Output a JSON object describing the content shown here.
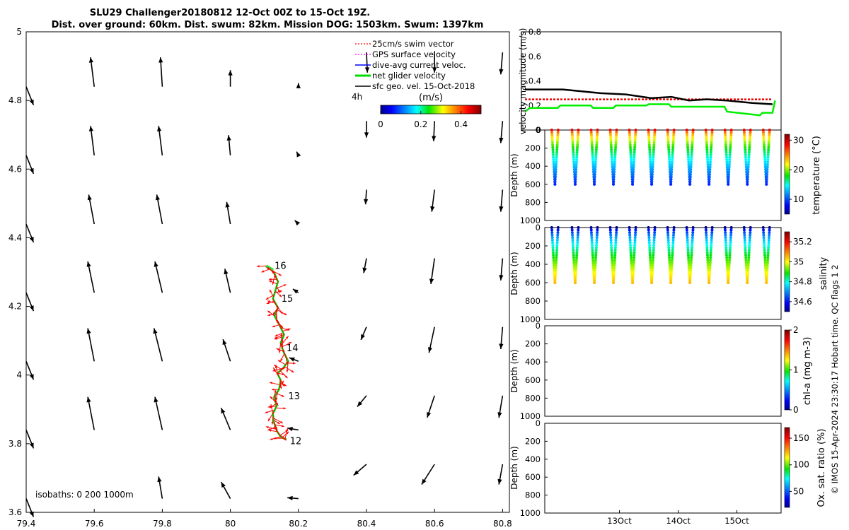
{
  "title": {
    "line1": "SLU29 Challenger20180812 12-Oct 00Z to 15-Oct 19Z.",
    "line2": "Dist. over ground: 60km. Dist. swum: 82km. Mission DOG: 1503km. Swum: 1397km"
  },
  "chart_data": [
    {
      "name": "map",
      "type": "scatter",
      "xticks": [
        "79.4",
        "79.6",
        "79.8",
        "80",
        "80.2",
        "80.4",
        "80.6",
        "80.8"
      ],
      "yticks": [
        "3.6",
        "3.8",
        "4",
        "4.2",
        "4.4",
        "4.6",
        "4.8",
        "5"
      ],
      "xlim": [
        79.4,
        80.82
      ],
      "ylim": [
        3.6,
        5.0
      ],
      "legend": [
        {
          "label": "25cm/s swim vector",
          "color": "#ff0000"
        },
        {
          "label": "GPS surface velocity",
          "color": "#ff00ff"
        },
        {
          "label": "dive-avg current veloc.",
          "color": "#0000ff"
        },
        {
          "label": "net glider velocity",
          "color": "#00dd00"
        },
        {
          "label": "sfc geo. vel. 15-Oct-2018",
          "color": "#000000"
        }
      ],
      "colorbar": {
        "label": "(m/s)",
        "ticks": [
          "0",
          "0.2",
          "0.4"
        ],
        "range": [
          0,
          0.5
        ]
      },
      "scale_label": "4h",
      "isobaths_label": "isobaths: 0    200   1000m",
      "track": {
        "points": [
          [
            80.105,
            4.318
          ],
          [
            80.128,
            4.3
          ],
          [
            80.14,
            4.272
          ],
          [
            80.132,
            4.245
          ],
          [
            80.125,
            4.222
          ],
          [
            80.14,
            4.196
          ],
          [
            80.13,
            4.172
          ],
          [
            80.148,
            4.138
          ],
          [
            80.158,
            4.118
          ],
          [
            80.148,
            4.094
          ],
          [
            80.155,
            4.07
          ],
          [
            80.17,
            4.04
          ],
          [
            80.155,
            4.02
          ],
          [
            80.138,
            4.005
          ],
          [
            80.148,
            3.985
          ],
          [
            80.143,
            3.958
          ],
          [
            80.128,
            3.935
          ],
          [
            80.136,
            3.91
          ],
          [
            80.125,
            3.887
          ],
          [
            80.128,
            3.862
          ],
          [
            80.138,
            3.835
          ],
          [
            80.148,
            3.82
          ],
          [
            80.165,
            3.812
          ]
        ],
        "day_labels": [
          {
            "text": "16",
            "lon": 80.13,
            "lat": 4.318
          },
          {
            "text": "15",
            "lon": 80.15,
            "lat": 4.222
          },
          {
            "text": "14",
            "lon": 80.165,
            "lat": 4.078
          },
          {
            "text": "13",
            "lon": 80.17,
            "lat": 3.938
          },
          {
            "text": "12",
            "lon": 80.175,
            "lat": 3.807
          }
        ]
      },
      "vectors": [
        {
          "lon": 79.4,
          "lat": 4.84,
          "u": 0.08,
          "v": -0.2
        },
        {
          "lon": 79.4,
          "lat": 4.64,
          "u": 0.08,
          "v": -0.2
        },
        {
          "lon": 79.4,
          "lat": 4.44,
          "u": 0.08,
          "v": -0.2
        },
        {
          "lon": 79.4,
          "lat": 4.24,
          "u": 0.08,
          "v": -0.2
        },
        {
          "lon": 79.4,
          "lat": 4.04,
          "u": 0.08,
          "v": -0.2
        },
        {
          "lon": 79.4,
          "lat": 3.84,
          "u": 0.08,
          "v": -0.2
        },
        {
          "lon": 79.4,
          "lat": 3.64,
          "u": 0.08,
          "v": -0.2
        },
        {
          "lon": 79.6,
          "lat": 4.84,
          "u": -0.04,
          "v": 0.32
        },
        {
          "lon": 79.6,
          "lat": 4.64,
          "u": -0.04,
          "v": 0.32
        },
        {
          "lon": 79.6,
          "lat": 4.44,
          "u": -0.06,
          "v": 0.32
        },
        {
          "lon": 79.6,
          "lat": 4.24,
          "u": -0.07,
          "v": 0.34
        },
        {
          "lon": 79.6,
          "lat": 4.04,
          "u": -0.07,
          "v": 0.36
        },
        {
          "lon": 79.6,
          "lat": 3.84,
          "u": -0.07,
          "v": 0.36
        },
        {
          "lon": 79.8,
          "lat": 4.84,
          "u": -0.02,
          "v": 0.32
        },
        {
          "lon": 79.8,
          "lat": 4.64,
          "u": -0.04,
          "v": 0.32
        },
        {
          "lon": 79.8,
          "lat": 4.44,
          "u": -0.06,
          "v": 0.32
        },
        {
          "lon": 79.8,
          "lat": 4.24,
          "u": -0.08,
          "v": 0.34
        },
        {
          "lon": 79.8,
          "lat": 4.04,
          "u": -0.09,
          "v": 0.36
        },
        {
          "lon": 79.8,
          "lat": 3.84,
          "u": -0.08,
          "v": 0.36
        },
        {
          "lon": 79.8,
          "lat": 3.64,
          "u": -0.04,
          "v": 0.24
        },
        {
          "lon": 80.0,
          "lat": 4.84,
          "u": 0.0,
          "v": 0.18
        },
        {
          "lon": 80.0,
          "lat": 4.64,
          "u": -0.02,
          "v": 0.22
        },
        {
          "lon": 80.0,
          "lat": 4.44,
          "u": -0.04,
          "v": 0.24
        },
        {
          "lon": 80.0,
          "lat": 4.24,
          "u": -0.06,
          "v": 0.26
        },
        {
          "lon": 80.0,
          "lat": 4.04,
          "u": -0.08,
          "v": 0.24
        },
        {
          "lon": 80.0,
          "lat": 3.84,
          "u": -0.1,
          "v": 0.24
        },
        {
          "lon": 80.0,
          "lat": 3.64,
          "u": -0.1,
          "v": 0.18
        },
        {
          "lon": 80.2,
          "lat": 4.84,
          "u": 0.0,
          "v": 0.04
        },
        {
          "lon": 80.2,
          "lat": 4.64,
          "u": -0.02,
          "v": 0.04
        },
        {
          "lon": 80.2,
          "lat": 4.44,
          "u": -0.04,
          "v": 0.04
        },
        {
          "lon": 80.2,
          "lat": 4.24,
          "u": -0.06,
          "v": 0.04
        },
        {
          "lon": 80.2,
          "lat": 4.04,
          "u": -0.1,
          "v": 0.04
        },
        {
          "lon": 80.2,
          "lat": 3.84,
          "u": -0.12,
          "v": 0.02
        },
        {
          "lon": 80.2,
          "lat": 3.64,
          "u": -0.12,
          "v": 0.01
        },
        {
          "lon": 80.4,
          "lat": 4.94,
          "u": 0.01,
          "v": -0.22
        },
        {
          "lon": 80.4,
          "lat": 4.74,
          "u": 0.0,
          "v": -0.18
        },
        {
          "lon": 80.4,
          "lat": 4.54,
          "u": -0.01,
          "v": -0.16
        },
        {
          "lon": 80.4,
          "lat": 4.34,
          "u": -0.03,
          "v": -0.16
        },
        {
          "lon": 80.4,
          "lat": 4.14,
          "u": -0.06,
          "v": -0.14
        },
        {
          "lon": 80.4,
          "lat": 3.94,
          "u": -0.1,
          "v": -0.12
        },
        {
          "lon": 80.4,
          "lat": 3.74,
          "u": -0.14,
          "v": -0.12
        },
        {
          "lon": 80.6,
          "lat": 4.94,
          "u": 0.0,
          "v": -0.22
        },
        {
          "lon": 80.6,
          "lat": 4.74,
          "u": -0.01,
          "v": -0.22
        },
        {
          "lon": 80.6,
          "lat": 4.54,
          "u": -0.03,
          "v": -0.24
        },
        {
          "lon": 80.6,
          "lat": 4.34,
          "u": -0.04,
          "v": -0.28
        },
        {
          "lon": 80.6,
          "lat": 4.14,
          "u": -0.06,
          "v": -0.28
        },
        {
          "lon": 80.6,
          "lat": 3.94,
          "u": -0.08,
          "v": -0.24
        },
        {
          "lon": 80.6,
          "lat": 3.74,
          "u": -0.14,
          "v": -0.22
        },
        {
          "lon": 80.8,
          "lat": 4.94,
          "u": -0.02,
          "v": -0.24
        },
        {
          "lon": 80.8,
          "lat": 4.74,
          "u": -0.02,
          "v": -0.24
        },
        {
          "lon": 80.8,
          "lat": 4.54,
          "u": -0.02,
          "v": -0.24
        },
        {
          "lon": 80.8,
          "lat": 4.34,
          "u": -0.02,
          "v": -0.24
        },
        {
          "lon": 80.8,
          "lat": 4.14,
          "u": -0.02,
          "v": -0.24
        },
        {
          "lon": 80.8,
          "lat": 3.94,
          "u": -0.04,
          "v": -0.24
        },
        {
          "lon": 80.8,
          "lat": 3.74,
          "u": -0.04,
          "v": -0.22
        }
      ]
    },
    {
      "name": "velocity",
      "type": "line",
      "ylabel": "velocity magnitude (m/s)",
      "yticks": [
        "0",
        "0.2",
        "0.4",
        "0.6",
        "0.8"
      ],
      "ylim": [
        0,
        0.8
      ],
      "xlim": [
        0,
        1
      ],
      "series": [
        {
          "name": "swim",
          "color": "#ee0000",
          "dashed": true,
          "x": [
            0,
            0.98
          ],
          "y": [
            0.25,
            0.25
          ]
        },
        {
          "name": "net glider velocity",
          "color": "#00ee00",
          "x": [
            0,
            0.02,
            0.07,
            0.13,
            0.14,
            0.26,
            0.27,
            0.35,
            0.36,
            0.48,
            0.49,
            0.57,
            0.58,
            0.62,
            0.63,
            0.79,
            0.8,
            0.93,
            0.94,
            0.98,
            0.99
          ],
          "y": [
            0.15,
            0.18,
            0.18,
            0.18,
            0.2,
            0.2,
            0.18,
            0.18,
            0.2,
            0.2,
            0.21,
            0.21,
            0.19,
            0.19,
            0.19,
            0.19,
            0.15,
            0.12,
            0.14,
            0.14,
            0.24
          ]
        },
        {
          "name": "current",
          "color": "#000000",
          "x": [
            0,
            0.15,
            0.2,
            0.3,
            0.4,
            0.5,
            0.58,
            0.65,
            0.72,
            0.8,
            0.9,
            0.98
          ],
          "y": [
            0.33,
            0.33,
            0.32,
            0.3,
            0.29,
            0.26,
            0.27,
            0.24,
            0.25,
            0.24,
            0.22,
            0.21
          ]
        }
      ]
    },
    {
      "name": "temperature",
      "type": "scatter",
      "ylabel": "Depth (m)",
      "yticks": [
        "0",
        "200",
        "400",
        "600",
        "800",
        "1000"
      ],
      "ylim": [
        0,
        1000
      ],
      "colorbar_label": "temperature (°C)",
      "colorbar_ticks": [
        "10",
        "20",
        "30"
      ],
      "crange": [
        5,
        32
      ],
      "dive_depth": 600,
      "surface_value": 29,
      "deep_value": 9,
      "profiles_x": [
        0.02,
        0.11,
        0.195,
        0.28,
        0.365,
        0.45,
        0.535,
        0.62,
        0.705,
        0.79,
        0.875,
        0.96
      ]
    },
    {
      "name": "salinity",
      "type": "scatter",
      "ylabel": "Depth (m)",
      "yticks": [
        "0",
        "200",
        "400",
        "600",
        "800",
        "1000"
      ],
      "ylim": [
        0,
        1000
      ],
      "colorbar_label": "salinity",
      "colorbar_ticks": [
        "34.6",
        "34.8",
        "35",
        "35.2"
      ],
      "crange": [
        34.5,
        35.3
      ],
      "dive_depth": 600,
      "surface_value": 34.5,
      "deep_value": 35.05,
      "profiles_x": [
        0.02,
        0.11,
        0.195,
        0.28,
        0.365,
        0.45,
        0.535,
        0.62,
        0.705,
        0.79,
        0.875,
        0.96
      ]
    },
    {
      "name": "chla",
      "type": "scatter",
      "ylabel": "Depth (m)",
      "yticks": [
        "0",
        "200",
        "400",
        "600",
        "800",
        "1000"
      ],
      "ylim": [
        0,
        1000
      ],
      "colorbar_label": "chl-a (mg m-3)",
      "colorbar_ticks": [
        "0",
        "1",
        "2"
      ],
      "crange": [
        0,
        2
      ]
    },
    {
      "name": "oxygen",
      "type": "scatter",
      "ylabel": "Depth (m)",
      "yticks": [
        "0",
        "200",
        "400",
        "600",
        "800",
        "1000"
      ],
      "ylim": [
        0,
        1000
      ],
      "colorbar_label": "Ox. sat. ratio (%)",
      "colorbar_ticks": [
        "50",
        "100",
        "150"
      ],
      "crange": [
        20,
        170
      ],
      "xticks": [
        {
          "label": "13Oct",
          "pos": 0.316
        },
        {
          "label": "14Oct",
          "pos": 0.565
        },
        {
          "label": "15Oct",
          "pos": 0.813
        }
      ]
    }
  ],
  "side_note": "© IMOS 15-Apr-2024 23:30:17 Hobart time. QC flags 1  2"
}
